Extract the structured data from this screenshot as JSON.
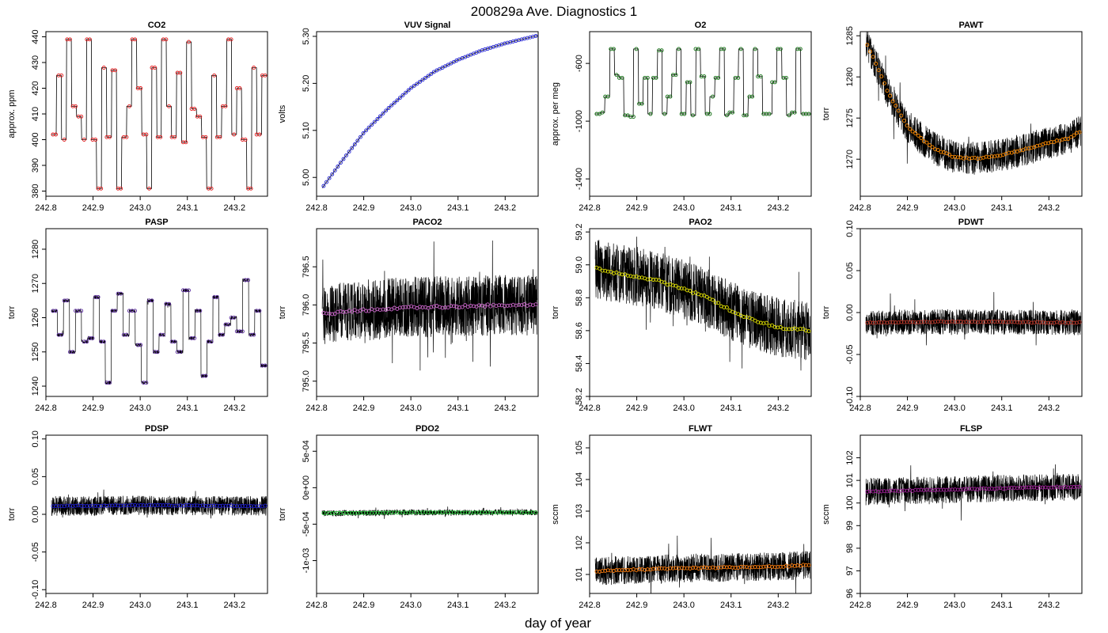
{
  "figure": {
    "title": "200829a   Ave. Diagnostics 1",
    "xlabel": "day of year"
  },
  "chart_data": [
    {
      "type": "line",
      "title": "CO2",
      "ylabel": "approx. ppm",
      "xlim": [
        242.8,
        243.27
      ],
      "ylim": [
        378,
        442
      ],
      "xticks": [
        "242.8",
        "242.9",
        "243.0",
        "243.1",
        "243.2"
      ],
      "xtick_values": [
        242.8,
        242.9,
        243.0,
        243.1,
        243.2
      ],
      "yticks": [
        "380",
        "390",
        "400",
        "410",
        "420",
        "430",
        "440"
      ],
      "ytick_values": [
        380,
        390,
        400,
        410,
        420,
        430,
        440
      ],
      "marker_color": "#e41a1c",
      "style": "levels",
      "noise": 0,
      "levels": [
        402,
        425,
        400,
        439,
        413,
        409,
        400,
        439,
        400,
        381,
        428,
        401,
        427,
        381,
        401,
        413,
        439,
        420,
        402,
        381,
        428,
        401,
        439,
        413,
        401,
        426,
        399,
        438,
        412,
        409,
        401,
        381,
        425,
        401,
        413,
        439,
        402,
        420,
        400,
        381,
        428,
        402,
        425
      ]
    },
    {
      "type": "line",
      "title": "VUV Signal",
      "ylabel": "volts",
      "xlim": [
        242.8,
        243.27
      ],
      "ylim": [
        4.96,
        5.31
      ],
      "xticks": [
        "242.8",
        "242.9",
        "243.0",
        "243.1",
        "243.2"
      ],
      "xtick_values": [
        242.8,
        242.9,
        243.0,
        243.1,
        243.2
      ],
      "yticks": [
        "5.00",
        "5.10",
        "5.20",
        "5.30"
      ],
      "ytick_values": [
        5.0,
        5.1,
        5.2,
        5.3
      ],
      "marker_color": "#1f1fd6",
      "style": "curve",
      "noise": 0,
      "x": [
        242.81,
        242.85,
        242.9,
        242.95,
        243.0,
        243.05,
        243.1,
        243.15,
        243.2,
        243.27
      ],
      "y": [
        4.975,
        5.03,
        5.095,
        5.145,
        5.19,
        5.225,
        5.25,
        5.27,
        5.285,
        5.302
      ]
    },
    {
      "type": "line",
      "title": "O2",
      "ylabel": "approx. per meg",
      "xlim": [
        242.8,
        243.27
      ],
      "ylim": [
        -1520,
        -380
      ],
      "xticks": [
        "242.8",
        "242.9",
        "243.0",
        "243.1",
        "243.2"
      ],
      "xtick_values": [
        242.8,
        242.9,
        243.0,
        243.1,
        243.2
      ],
      "yticks": [
        "-1400",
        "-1000",
        "-600"
      ],
      "ytick_values": [
        -1400,
        -1000,
        -600
      ],
      "marker_color": "#0b6b0b",
      "style": "levels",
      "noise": 0,
      "levels": [
        -950,
        -940,
        -830,
        -500,
        -680,
        -700,
        -960,
        -970,
        -500,
        -880,
        -700,
        -950,
        -700,
        -510,
        -950,
        -830,
        -680,
        -500,
        -950,
        -730,
        -960,
        -500,
        -690,
        -950,
        -830,
        -700,
        -500,
        -960,
        -940,
        -700,
        -500,
        -960,
        -830,
        -500,
        -690,
        -950,
        -950,
        -730,
        -500,
        -700,
        -960,
        -940,
        -500,
        -950,
        -950
      ]
    },
    {
      "type": "line",
      "title": "PAWT",
      "ylabel": "torr",
      "xlim": [
        242.8,
        243.27
      ],
      "ylim": [
        1265.5,
        1285.5
      ],
      "xticks": [
        "242.8",
        "242.9",
        "243.0",
        "243.1",
        "243.2"
      ],
      "xtick_values": [
        242.8,
        242.9,
        243.0,
        243.1,
        243.2
      ],
      "yticks": [
        "1270",
        "1275",
        "1280",
        "1285"
      ],
      "ytick_values": [
        1270,
        1275,
        1280,
        1285
      ],
      "marker_color": "#ff8c00",
      "style": "curve",
      "noise": 2.0,
      "x": [
        242.81,
        242.83,
        242.86,
        242.9,
        242.95,
        243.0,
        243.05,
        243.1,
        243.15,
        243.2,
        243.24,
        243.27
      ],
      "y": [
        1284.5,
        1282,
        1278,
        1274,
        1271.5,
        1270.2,
        1270.1,
        1270.5,
        1271.2,
        1272,
        1272.5,
        1273.5
      ]
    },
    {
      "type": "line",
      "title": "PASP",
      "ylabel": "torr",
      "xlim": [
        242.8,
        243.27
      ],
      "ylim": [
        1237,
        1286
      ],
      "xticks": [
        "242.8",
        "242.9",
        "243.0",
        "243.1",
        "243.2"
      ],
      "xtick_values": [
        242.8,
        242.9,
        243.0,
        243.1,
        243.2
      ],
      "yticks": [
        "1240",
        "1250",
        "1260",
        "1270",
        "1280"
      ],
      "ytick_values": [
        1240,
        1250,
        1260,
        1270,
        1280
      ],
      "marker_color": "#5b2c9f",
      "style": "levels",
      "noise": 0.5,
      "levels": [
        1262,
        1255,
        1265,
        1250,
        1262,
        1253,
        1254,
        1266,
        1253,
        1241,
        1262,
        1267,
        1255,
        1262,
        1252,
        1241,
        1265,
        1250,
        1255,
        1264,
        1253,
        1250,
        1268,
        1254,
        1262,
        1243,
        1253,
        1266,
        1255,
        1258,
        1260,
        1256,
        1271,
        1255,
        1262,
        1246
      ]
    },
    {
      "type": "line",
      "title": "PACO2",
      "ylabel": "torr",
      "xlim": [
        242.8,
        243.27
      ],
      "ylim": [
        794.8,
        797.0
      ],
      "xticks": [
        "242.8",
        "242.9",
        "243.0",
        "243.1",
        "243.2"
      ],
      "xtick_values": [
        242.8,
        242.9,
        243.0,
        243.1,
        243.2
      ],
      "yticks": [
        "795.0",
        "795.5",
        "796.0",
        "796.5"
      ],
      "ytick_values": [
        795.0,
        795.5,
        796.0,
        796.5
      ],
      "marker_color": "#cc66cc",
      "style": "curve",
      "noise": 0.4,
      "x": [
        242.81,
        242.9,
        243.0,
        243.1,
        243.2,
        243.27
      ],
      "y": [
        795.88,
        795.93,
        795.97,
        795.98,
        796.0,
        796.0
      ]
    },
    {
      "type": "line",
      "title": "PAO2",
      "ylabel": "torr",
      "xlim": [
        242.8,
        243.27
      ],
      "ylim": [
        58.2,
        59.22
      ],
      "xticks": [
        "242.8",
        "242.9",
        "243.0",
        "243.1",
        "243.2"
      ],
      "xtick_values": [
        242.8,
        242.9,
        243.0,
        243.1,
        243.2
      ],
      "yticks": [
        "58.2",
        "58.4",
        "58.6",
        "58.8",
        "59.0",
        "59.2"
      ],
      "ytick_values": [
        58.2,
        58.4,
        58.6,
        58.8,
        59.0,
        59.2
      ],
      "marker_color": "#e6e600",
      "style": "curve",
      "noise": 0.18,
      "x": [
        242.81,
        242.85,
        242.9,
        242.95,
        243.0,
        243.05,
        243.1,
        243.15,
        243.2,
        243.27
      ],
      "y": [
        58.98,
        58.95,
        58.93,
        58.9,
        58.85,
        58.8,
        58.72,
        58.66,
        58.62,
        58.6
      ]
    },
    {
      "type": "line",
      "title": "PDWT",
      "ylabel": "torr",
      "xlim": [
        242.8,
        243.27
      ],
      "ylim": [
        -0.1,
        0.1
      ],
      "xticks": [
        "242.8",
        "242.9",
        "243.0",
        "243.1",
        "243.2"
      ],
      "xtick_values": [
        242.8,
        242.9,
        243.0,
        243.1,
        243.2
      ],
      "yticks": [
        "-0.10",
        "-0.05",
        "0.00",
        "0.05",
        "0.10"
      ],
      "ytick_values": [
        -0.1,
        -0.05,
        0.0,
        0.05,
        0.1
      ],
      "marker_color": "#c0392b",
      "style": "curve",
      "noise": 0.015,
      "x": [
        242.81,
        243.0,
        243.27
      ],
      "y": [
        -0.012,
        -0.011,
        -0.012
      ]
    },
    {
      "type": "line",
      "title": "PDSP",
      "ylabel": "torr",
      "xlim": [
        242.8,
        243.27
      ],
      "ylim": [
        -0.105,
        0.105
      ],
      "xticks": [
        "242.8",
        "242.9",
        "243.0",
        "243.1",
        "243.2"
      ],
      "xtick_values": [
        242.8,
        242.9,
        243.0,
        243.1,
        243.2
      ],
      "yticks": [
        "-0.10",
        "-0.05",
        "0.00",
        "0.05",
        "0.10"
      ],
      "ytick_values": [
        -0.1,
        -0.05,
        0.0,
        0.05,
        0.1
      ],
      "marker_color": "#1f1fd6",
      "style": "curve",
      "noise": 0.013,
      "x": [
        242.81,
        243.0,
        243.27
      ],
      "y": [
        0.011,
        0.012,
        0.011
      ]
    },
    {
      "type": "line",
      "title": "PDO2",
      "ylabel": "torr",
      "xlim": [
        242.8,
        243.27
      ],
      "ylim": [
        -0.00145,
        0.00072
      ],
      "xticks": [
        "242.8",
        "242.9",
        "243.0",
        "243.1",
        "243.2"
      ],
      "xtick_values": [
        242.8,
        242.9,
        243.0,
        243.1,
        243.2
      ],
      "yticks": [
        "-1e-03",
        "-5e-04",
        "0e+00",
        "5e-04"
      ],
      "ytick_values": [
        -0.001,
        -0.0005,
        0.0,
        0.0005
      ],
      "marker_color": "#2ecc40",
      "style": "curve",
      "noise": 4e-05,
      "x": [
        242.81,
        243.0,
        243.27
      ],
      "y": [
        -0.00035,
        -0.00034,
        -0.00034
      ]
    },
    {
      "type": "line",
      "title": "FLWT",
      "ylabel": "sccm",
      "xlim": [
        242.8,
        243.27
      ],
      "ylim": [
        100.4,
        105.4
      ],
      "xticks": [
        "242.8",
        "242.9",
        "243.0",
        "243.1",
        "243.2"
      ],
      "xtick_values": [
        242.8,
        242.9,
        243.0,
        243.1,
        243.2
      ],
      "yticks": [
        "101",
        "102",
        "103",
        "104",
        "105"
      ],
      "ytick_values": [
        101,
        102,
        103,
        104,
        105
      ],
      "marker_color": "#ff7f0e",
      "style": "curve",
      "noise": 0.45,
      "x": [
        242.81,
        242.9,
        243.0,
        243.1,
        243.2,
        243.27
      ],
      "y": [
        101.1,
        101.15,
        101.2,
        101.22,
        101.25,
        101.3
      ]
    },
    {
      "type": "line",
      "title": "FLSP",
      "ylabel": "sccm",
      "xlim": [
        242.8,
        243.27
      ],
      "ylim": [
        96.0,
        103.0
      ],
      "xticks": [
        "242.8",
        "242.9",
        "243.0",
        "243.1",
        "243.2"
      ],
      "xtick_values": [
        242.8,
        242.9,
        243.0,
        243.1,
        243.2
      ],
      "yticks": [
        "96",
        "97",
        "98",
        "99",
        "100",
        "101",
        "102"
      ],
      "ytick_values": [
        96,
        97,
        98,
        99,
        100,
        101,
        102
      ],
      "marker_color": "#a0209a",
      "style": "curve",
      "noise": 0.6,
      "x": [
        242.81,
        242.9,
        243.0,
        243.1,
        243.2,
        243.27
      ],
      "y": [
        100.5,
        100.55,
        100.6,
        100.65,
        100.7,
        100.7
      ]
    }
  ]
}
